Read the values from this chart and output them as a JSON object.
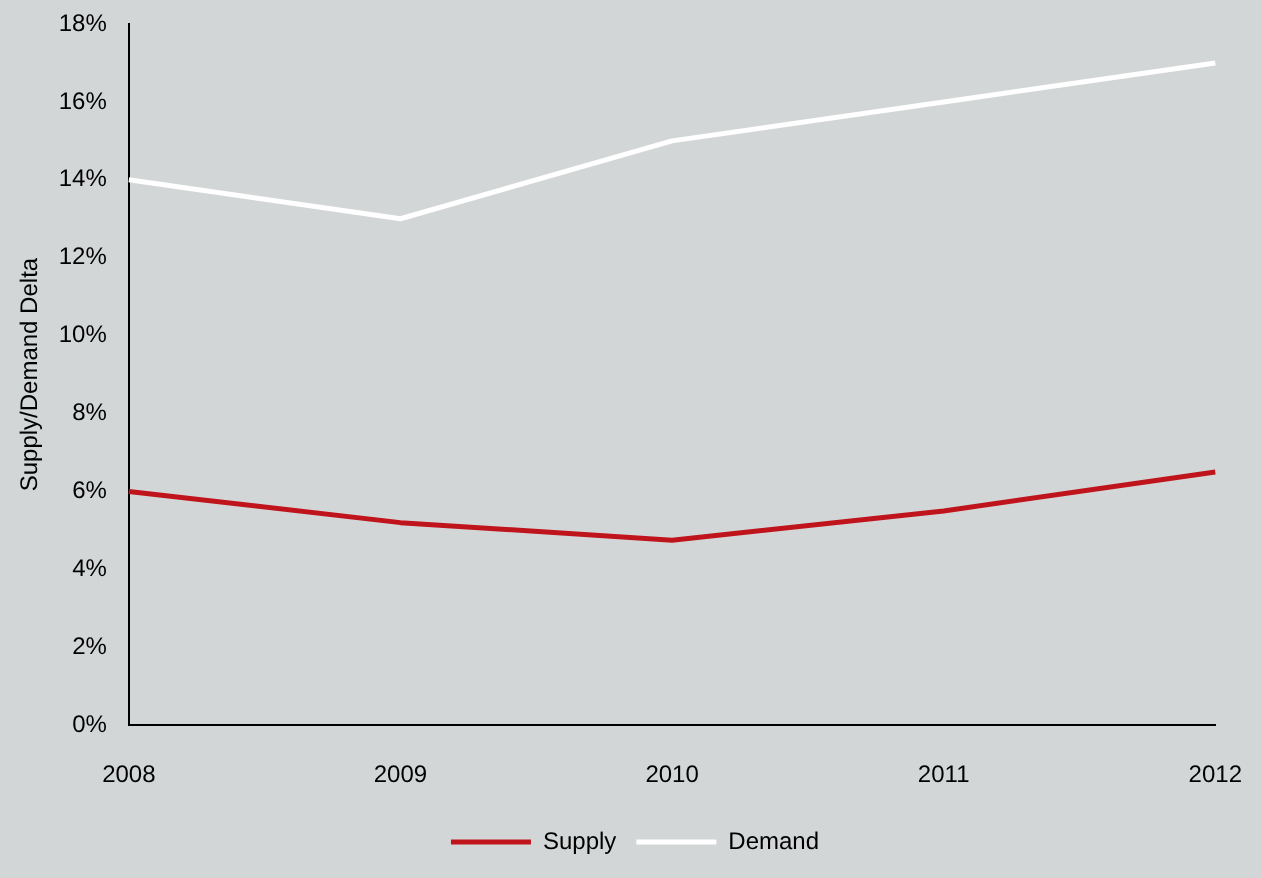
{
  "chart_data": {
    "type": "line",
    "ylabel": "Supply/Demand Delta",
    "categories": [
      "2008",
      "2009",
      "2010",
      "2011",
      "2012"
    ],
    "series": [
      {
        "name": "Supply",
        "color": "#c0141c",
        "values": [
          6.0,
          5.2,
          4.75,
          5.5,
          6.5
        ]
      },
      {
        "name": "Demand",
        "color": "#ffffff",
        "values": [
          14,
          13,
          15,
          16,
          17
        ]
      }
    ],
    "ylim": [
      0,
      18
    ],
    "yticks": [
      {
        "value": 0,
        "label": "0%"
      },
      {
        "value": 2,
        "label": "2%"
      },
      {
        "value": 4,
        "label": "4%"
      },
      {
        "value": 6,
        "label": "6%"
      },
      {
        "value": 8,
        "label": "8%"
      },
      {
        "value": 10,
        "label": "10%"
      },
      {
        "value": 12,
        "label": "12%"
      },
      {
        "value": 14,
        "label": "14%"
      },
      {
        "value": 16,
        "label": "16%"
      },
      {
        "value": 18,
        "label": "18%"
      }
    ],
    "grid": false,
    "legend": "bottom",
    "marker": "none",
    "line_style": "solid"
  }
}
